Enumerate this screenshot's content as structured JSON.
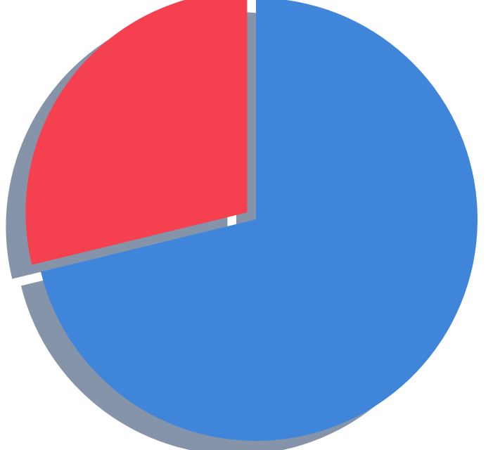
{
  "chart_data": {
    "type": "pie",
    "title": "",
    "slices": [
      {
        "value": 71.2,
        "color": "#3f86db",
        "exploded": false
      },
      {
        "value": 28.8,
        "color": "#f5404f",
        "exploded": true
      }
    ],
    "start_angle_deg": 0,
    "direction": "clockwise",
    "shadow": true,
    "shadow_color": "#8594a8",
    "legend": "none",
    "data_labels": false
  }
}
